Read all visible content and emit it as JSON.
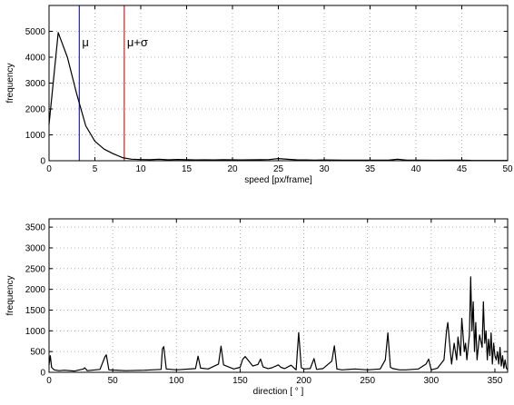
{
  "chart_data": [
    {
      "type": "line",
      "xlabel": "speed [px/frame]",
      "ylabel": "frequency",
      "xlim": [
        0,
        50
      ],
      "ylim": [
        0,
        6000
      ],
      "xticks": [
        0,
        5,
        10,
        15,
        20,
        25,
        30,
        35,
        40,
        45,
        50
      ],
      "yticks": [
        0,
        1000,
        2000,
        3000,
        4000,
        5000
      ],
      "grid": true,
      "series": [
        {
          "color": "#000000",
          "x": [
            0,
            1,
            2,
            3,
            4,
            5,
            6,
            7,
            8,
            9,
            10,
            11,
            12,
            13,
            14,
            15,
            16,
            17,
            18,
            19,
            20,
            21,
            22,
            23,
            24,
            25,
            26,
            27,
            28,
            29,
            30,
            32,
            34,
            36,
            37,
            38,
            39,
            40,
            42,
            44,
            45,
            46,
            48,
            50
          ],
          "y": [
            1400,
            4950,
            4000,
            2600,
            1350,
            750,
            450,
            270,
            120,
            60,
            45,
            40,
            55,
            35,
            50,
            40,
            30,
            35,
            30,
            40,
            35,
            30,
            35,
            40,
            45,
            85,
            55,
            35,
            30,
            25,
            30,
            25,
            20,
            20,
            22,
            55,
            25,
            20,
            18,
            20,
            25,
            15,
            12,
            10
          ]
        }
      ],
      "vlines": [
        {
          "x": 3.3,
          "color": "#2222bb",
          "label": "μ"
        },
        {
          "x": 8.2,
          "color": "#cc2222",
          "label": "μ+σ"
        }
      ]
    },
    {
      "type": "line",
      "xlabel": "direction [ ° ]",
      "ylabel": "frequency",
      "xlim": [
        0,
        360
      ],
      "ylim": [
        0,
        3700
      ],
      "xticks": [
        0,
        50,
        100,
        150,
        200,
        250,
        300,
        350
      ],
      "yticks": [
        0,
        500,
        1000,
        1500,
        2000,
        2500,
        3000,
        3500
      ],
      "grid": true,
      "series": [
        {
          "color": "#000000",
          "x": [
            0,
            1,
            2,
            4,
            8,
            12,
            20,
            27,
            28,
            30,
            40,
            44,
            45,
            47,
            60,
            75,
            88,
            89,
            90,
            92,
            100,
            115,
            117,
            119,
            125,
            133,
            135,
            137,
            145,
            150,
            152,
            154,
            160,
            164,
            166,
            168,
            172,
            175,
            180,
            182,
            185,
            190,
            194,
            196,
            198,
            200,
            205,
            208,
            210,
            215,
            222,
            224,
            226,
            230,
            240,
            250,
            260,
            264,
            266,
            268,
            270,
            275,
            280,
            290,
            296,
            298,
            300,
            305,
            310,
            312,
            313,
            315,
            316,
            318,
            320,
            321,
            323,
            324,
            326,
            327,
            328,
            330,
            331,
            332,
            333,
            334,
            335,
            336,
            337,
            338,
            340,
            341,
            342,
            343,
            344,
            345,
            346,
            347,
            348,
            349,
            350,
            351,
            352,
            353,
            354,
            355,
            356,
            357,
            358,
            359,
            360
          ],
          "y": [
            180,
            400,
            120,
            60,
            40,
            50,
            30,
            80,
            110,
            40,
            70,
            380,
            420,
            60,
            40,
            50,
            70,
            560,
            620,
            80,
            60,
            90,
            390,
            100,
            80,
            200,
            630,
            180,
            80,
            120,
            310,
            380,
            150,
            190,
            320,
            130,
            90,
            110,
            180,
            120,
            90,
            170,
            60,
            960,
            110,
            80,
            90,
            330,
            70,
            90,
            270,
            640,
            80,
            60,
            80,
            60,
            80,
            300,
            950,
            120,
            90,
            60,
            60,
            80,
            200,
            320,
            60,
            100,
            300,
            1000,
            1200,
            500,
            200,
            700,
            300,
            850,
            400,
            1300,
            500,
            700,
            300,
            900,
            2300,
            1000,
            1700,
            500,
            1200,
            300,
            600,
            900,
            600,
            1700,
            700,
            1000,
            300,
            800,
            400,
            950,
            200,
            700,
            400,
            300,
            500,
            200,
            600,
            150,
            400,
            100,
            300,
            100,
            60
          ]
        }
      ]
    }
  ]
}
